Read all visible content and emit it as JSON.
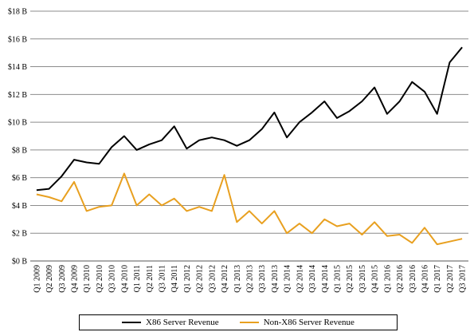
{
  "chart_data": {
    "type": "line",
    "title": "",
    "xlabel": "",
    "ylabel": "",
    "ylim": [
      0,
      18
    ],
    "y_ticks": [
      "$0 B",
      "$2 B",
      "$4 B",
      "$6 B",
      "$8 B",
      "$10 B",
      "$12 B",
      "$14 B",
      "$16 B",
      "$18 B"
    ],
    "grid": "horizontal",
    "legend_position": "bottom",
    "categories": [
      "Q1 2009",
      "Q2 2009",
      "Q3 2009",
      "Q4 2009",
      "Q1 2010",
      "Q2 2010",
      "Q3 2010",
      "Q4 2010",
      "Q1 2011",
      "Q2 2011",
      "Q3 2011",
      "Q4 2011",
      "Q1 2012",
      "Q2 2012",
      "Q3 2012",
      "Q4 2012",
      "Q1 2013",
      "Q2 2013",
      "Q3 2013",
      "Q4 2013",
      "Q1 2014",
      "Q2 2014",
      "Q3 2014",
      "Q4 2014",
      "Q1 2015",
      "Q2 2015",
      "Q3 2015",
      "Q4 2015",
      "Q1 2016",
      "Q2 2016",
      "Q3 2016",
      "Q4 2016",
      "Q1 2017",
      "Q2 2017",
      "Q3 2017"
    ],
    "series": [
      {
        "name": "X86 Server Revenue",
        "color": "#000000",
        "values": [
          5.1,
          5.2,
          6.1,
          7.3,
          7.1,
          7.0,
          8.2,
          9.0,
          8.0,
          8.4,
          8.7,
          9.7,
          8.1,
          8.7,
          8.9,
          8.7,
          8.3,
          8.7,
          9.5,
          10.7,
          8.9,
          10.0,
          10.7,
          11.5,
          10.3,
          10.8,
          11.5,
          12.5,
          10.6,
          11.5,
          12.9,
          12.2,
          10.6,
          14.3,
          15.4
        ]
      },
      {
        "name": "Non-X86 Server Revenue",
        "color": "#E8A020",
        "values": [
          4.8,
          4.6,
          4.3,
          5.7,
          3.6,
          3.9,
          4.0,
          6.3,
          4.0,
          4.8,
          4.0,
          4.5,
          3.6,
          3.9,
          3.6,
          6.2,
          2.8,
          3.6,
          2.7,
          3.6,
          2.0,
          2.7,
          2.0,
          3.0,
          2.5,
          2.7,
          1.9,
          2.8,
          1.8,
          1.9,
          1.3,
          2.4,
          1.2,
          1.4,
          1.6
        ]
      }
    ]
  }
}
